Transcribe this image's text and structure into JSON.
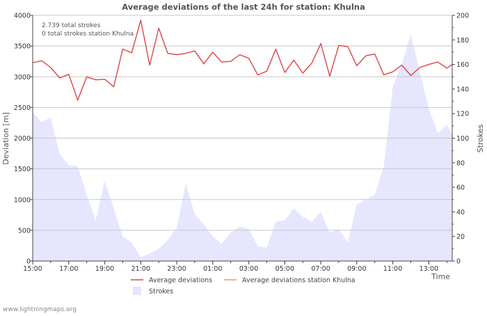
{
  "chart_data": {
    "type": "line",
    "title": "Average deviations of the last 24h for station: Khulna",
    "xlabel": "Time",
    "ylabel_left": "Deviation  [m]",
    "ylabel_right": "Strokes",
    "ylim_left": [
      0,
      4000
    ],
    "ylim_right": [
      0,
      200
    ],
    "yticks_left": [
      0,
      500,
      1000,
      1500,
      2000,
      2500,
      3000,
      3500,
      4000
    ],
    "yticks_right": [
      0,
      20,
      40,
      60,
      80,
      100,
      120,
      140,
      160,
      180,
      200
    ],
    "xlim_hours": [
      0,
      23.3
    ],
    "xticks": [
      {
        "h": 0,
        "label": "15:00"
      },
      {
        "h": 2,
        "label": "17:00"
      },
      {
        "h": 4,
        "label": "19:00"
      },
      {
        "h": 6,
        "label": "21:00"
      },
      {
        "h": 8,
        "label": "23:00"
      },
      {
        "h": 10,
        "label": "01:00"
      },
      {
        "h": 12,
        "label": "03:00"
      },
      {
        "h": 14,
        "label": "05:00"
      },
      {
        "h": 16,
        "label": "07:00"
      },
      {
        "h": 18,
        "label": "09:00"
      },
      {
        "h": 20,
        "label": "11:00"
      },
      {
        "h": 22,
        "label": "13:00"
      }
    ],
    "annotations": [
      "2.739 total strokes",
      "0 total strokes station Khulna"
    ],
    "grid": true,
    "series": [
      {
        "name": "Average deviations",
        "color": "#dd4444",
        "axis": "left",
        "style": "line",
        "x": [
          0,
          0.5,
          1,
          1.5,
          2,
          2.5,
          3,
          3.5,
          4,
          4.5,
          5,
          5.5,
          6,
          6.5,
          7,
          7.5,
          8,
          8.5,
          9,
          9.5,
          10,
          10.5,
          11,
          11.5,
          12,
          12.5,
          13,
          13.5,
          14,
          14.5,
          15,
          15.5,
          16,
          16.5,
          17,
          17.5,
          18,
          18.5,
          19,
          19.5,
          20,
          20.5,
          21,
          21.5,
          22,
          22.5,
          23,
          23.3
        ],
        "values": [
          3230,
          3260,
          3150,
          2980,
          3040,
          2620,
          3000,
          2950,
          2960,
          2840,
          3450,
          3390,
          3920,
          3190,
          3790,
          3380,
          3360,
          3380,
          3420,
          3210,
          3400,
          3240,
          3250,
          3360,
          3300,
          3030,
          3090,
          3450,
          3070,
          3270,
          3060,
          3220,
          3540,
          3010,
          3510,
          3490,
          3180,
          3340,
          3370,
          3030,
          3080,
          3190,
          3020,
          3150,
          3200,
          3240,
          3140,
          3200
        ]
      },
      {
        "name": "Average deviations station Khulna",
        "color": "#e8a040",
        "axis": "left",
        "style": "line",
        "x": [],
        "values": []
      },
      {
        "name": "Strokes",
        "color": "#e6e6ff",
        "axis": "right",
        "style": "area",
        "x": [
          0,
          0.5,
          1,
          1.5,
          2,
          2.5,
          3,
          3.5,
          4,
          4.5,
          5,
          5.5,
          6,
          6.5,
          7,
          7.5,
          8,
          8.5,
          9,
          9.5,
          10,
          10.5,
          11,
          11.5,
          12,
          12.5,
          13,
          13.5,
          14,
          14.5,
          15,
          15.5,
          16,
          16.5,
          17,
          17.5,
          18,
          18.5,
          19,
          19.5,
          20,
          20.5,
          21,
          21.5,
          22,
          22.5,
          23,
          23.3
        ],
        "values": [
          121,
          113,
          117,
          87,
          78,
          77,
          54,
          33,
          65,
          43,
          20,
          15,
          3,
          6,
          10,
          17,
          27,
          63,
          38,
          30,
          20,
          14,
          23,
          28,
          26,
          12,
          11,
          32,
          33,
          43,
          36,
          32,
          40,
          23,
          26,
          15,
          46,
          50,
          54,
          77,
          142,
          160,
          185,
          154,
          124,
          104,
          111,
          103
        ]
      }
    ],
    "legend": {
      "position": "bottom",
      "items": [
        {
          "label": "Average deviations",
          "color": "#dd4444",
          "kind": "line"
        },
        {
          "label": "Average deviations station Khulna",
          "color": "#e8a040",
          "kind": "line"
        },
        {
          "label": "Strokes",
          "color": "#e6e6ff",
          "kind": "area"
        }
      ]
    }
  },
  "footer": {
    "credit": "www.lightningmaps.org"
  }
}
